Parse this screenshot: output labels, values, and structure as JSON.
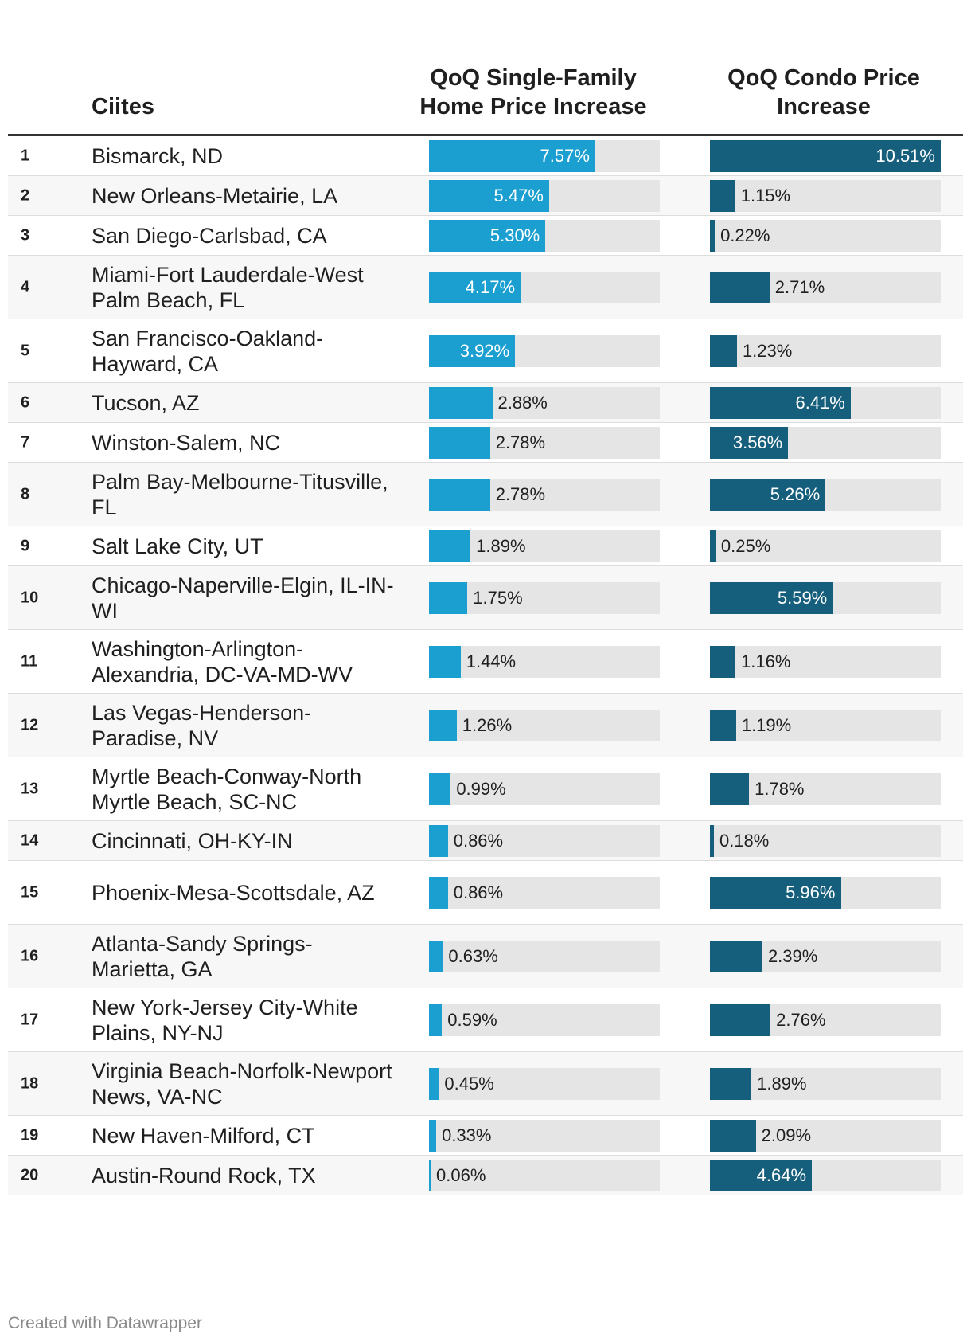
{
  "header": {
    "city_label": "Ciites",
    "sf_label": "QoQ Single-Family Home Price Increase",
    "condo_label": "QoQ Condo Price Increase"
  },
  "footer": {
    "credit": "Created with Datawrapper"
  },
  "colors": {
    "single_family": "#1b9fd0",
    "condo": "#165f7c",
    "track": "#e5e5e5"
  },
  "chart_data": {
    "type": "table",
    "title": "",
    "columns": [
      "Ciites",
      "QoQ Single-Family Home Price Increase",
      "QoQ Condo Price Increase"
    ],
    "scale_max": 10.51,
    "rows": [
      {
        "rank": "1",
        "city": "Bismarck, ND",
        "sf": 7.57,
        "sf_label": "7.57%",
        "condo": 10.51,
        "condo_label": "10.51%"
      },
      {
        "rank": "2",
        "city": "New Orleans-Metairie, LA",
        "sf": 5.47,
        "sf_label": "5.47%",
        "condo": 1.15,
        "condo_label": "1.15%"
      },
      {
        "rank": "3",
        "city": "San Diego-Carlsbad, CA",
        "sf": 5.3,
        "sf_label": "5.30%",
        "condo": 0.22,
        "condo_label": "0.22%"
      },
      {
        "rank": "4",
        "city": "Miami-Fort Lauderdale-West Palm Beach, FL",
        "sf": 4.17,
        "sf_label": "4.17%",
        "condo": 2.71,
        "condo_label": "2.71%"
      },
      {
        "rank": "5",
        "city": "San Francisco-Oakland-Hayward, CA",
        "sf": 3.92,
        "sf_label": "3.92%",
        "condo": 1.23,
        "condo_label": "1.23%"
      },
      {
        "rank": "6",
        "city": "Tucson, AZ",
        "sf": 2.88,
        "sf_label": "2.88%",
        "condo": 6.41,
        "condo_label": "6.41%"
      },
      {
        "rank": "7",
        "city": "Winston-Salem, NC",
        "sf": 2.78,
        "sf_label": "2.78%",
        "condo": 3.56,
        "condo_label": "3.56%"
      },
      {
        "rank": "8",
        "city": "Palm Bay-Melbourne-Titusville, FL",
        "sf": 2.78,
        "sf_label": "2.78%",
        "condo": 5.26,
        "condo_label": "5.26%"
      },
      {
        "rank": "9",
        "city": "Salt Lake City, UT",
        "sf": 1.89,
        "sf_label": "1.89%",
        "condo": 0.25,
        "condo_label": "0.25%"
      },
      {
        "rank": "10",
        "city": "Chicago-Naperville-Elgin, IL-IN-WI",
        "sf": 1.75,
        "sf_label": "1.75%",
        "condo": 5.59,
        "condo_label": "5.59%"
      },
      {
        "rank": "11",
        "city": "Washington-Arlington-Alexandria, DC-VA-MD-WV",
        "sf": 1.44,
        "sf_label": "1.44%",
        "condo": 1.16,
        "condo_label": "1.16%"
      },
      {
        "rank": "12",
        "city": "Las Vegas-Henderson-Paradise, NV",
        "sf": 1.26,
        "sf_label": "1.26%",
        "condo": 1.19,
        "condo_label": "1.19%"
      },
      {
        "rank": "13",
        "city": "Myrtle Beach-Conway-North Myrtle Beach, SC-NC",
        "sf": 0.99,
        "sf_label": "0.99%",
        "condo": 1.78,
        "condo_label": "1.78%"
      },
      {
        "rank": "14",
        "city": "Cincinnati, OH-KY-IN",
        "sf": 0.86,
        "sf_label": "0.86%",
        "condo": 0.18,
        "condo_label": "0.18%"
      },
      {
        "rank": "15",
        "city": "Phoenix-Mesa-Scottsdale, AZ",
        "sf": 0.86,
        "sf_label": "0.86%",
        "condo": 5.96,
        "condo_label": "5.96%"
      },
      {
        "rank": "16",
        "city": "Atlanta-Sandy Springs-Marietta, GA",
        "sf": 0.63,
        "sf_label": "0.63%",
        "condo": 2.39,
        "condo_label": "2.39%"
      },
      {
        "rank": "17",
        "city": "New York-Jersey City-White Plains, NY-NJ",
        "sf": 0.59,
        "sf_label": "0.59%",
        "condo": 2.76,
        "condo_label": "2.76%"
      },
      {
        "rank": "18",
        "city": "Virginia Beach-Norfolk-Newport News, VA-NC",
        "sf": 0.45,
        "sf_label": "0.45%",
        "condo": 1.89,
        "condo_label": "1.89%"
      },
      {
        "rank": "19",
        "city": "New Haven-Milford, CT",
        "sf": 0.33,
        "sf_label": "0.33%",
        "condo": 2.09,
        "condo_label": "2.09%"
      },
      {
        "rank": "20",
        "city": "Austin-Round Rock, TX",
        "sf": 0.06,
        "sf_label": "0.06%",
        "condo": 4.64,
        "condo_label": "4.64%"
      }
    ]
  }
}
